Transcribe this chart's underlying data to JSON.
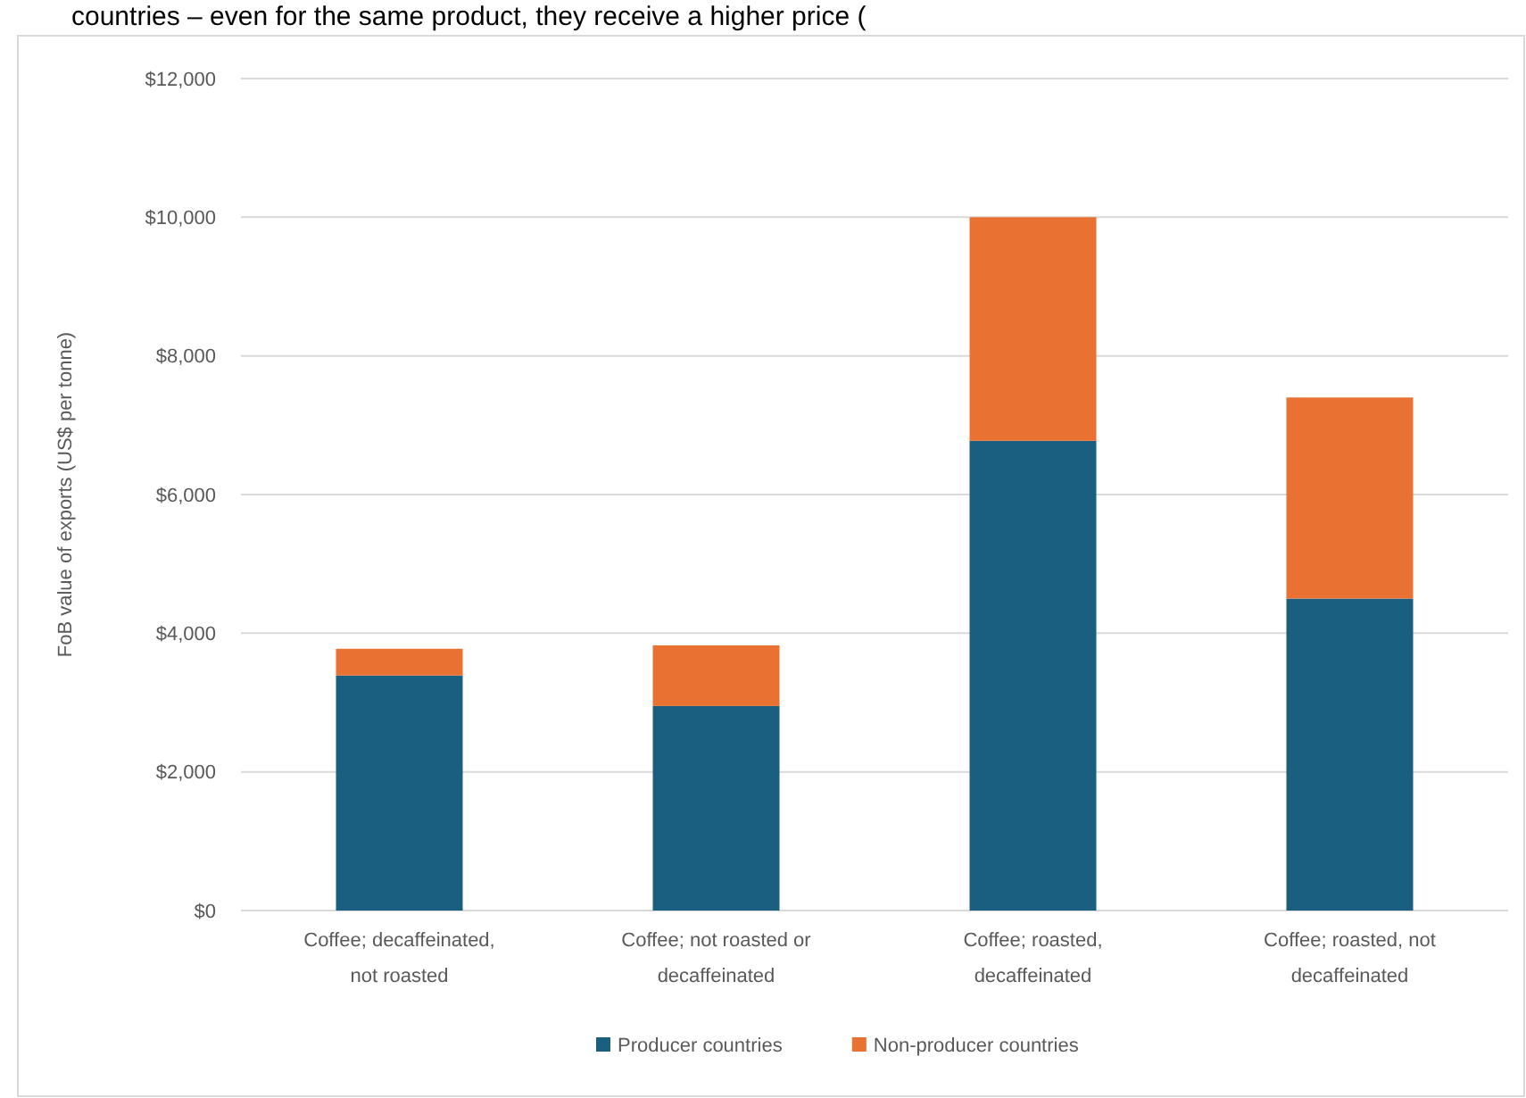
{
  "chart_data": {
    "type": "bar",
    "stacked": true,
    "annotations": [
      "countries – even for the same product, they receive a higher price ("
    ],
    "ylabel": "FoB value of exports (US$ per tonne)",
    "categories": [
      "Coffee; decaffeinated, not roasted",
      "Coffee; not roasted or decaffeinated",
      "Coffee; roasted, decaffeinated",
      "Coffee; roasted, not decaffeinated"
    ],
    "series": [
      {
        "name": "Producer countries",
        "color": "#1a5e80",
        "values": [
          3390,
          2950,
          6775,
          4500
        ]
      },
      {
        "name": "Non-producer countries",
        "color": "#e97132",
        "values": [
          385,
          875,
          3225,
          2900
        ]
      }
    ],
    "ylim": [
      0,
      12000
    ],
    "yticks": [
      {
        "value": 0,
        "label": "$0"
      },
      {
        "value": 2000,
        "label": "$2,000"
      },
      {
        "value": 4000,
        "label": "$4,000"
      },
      {
        "value": 6000,
        "label": "$6,000"
      },
      {
        "value": 8000,
        "label": "$8,000"
      },
      {
        "value": 10000,
        "label": "$10,000"
      },
      {
        "value": 12000,
        "label": "$12,000"
      }
    ],
    "grid": "y",
    "legend": "bottom"
  }
}
